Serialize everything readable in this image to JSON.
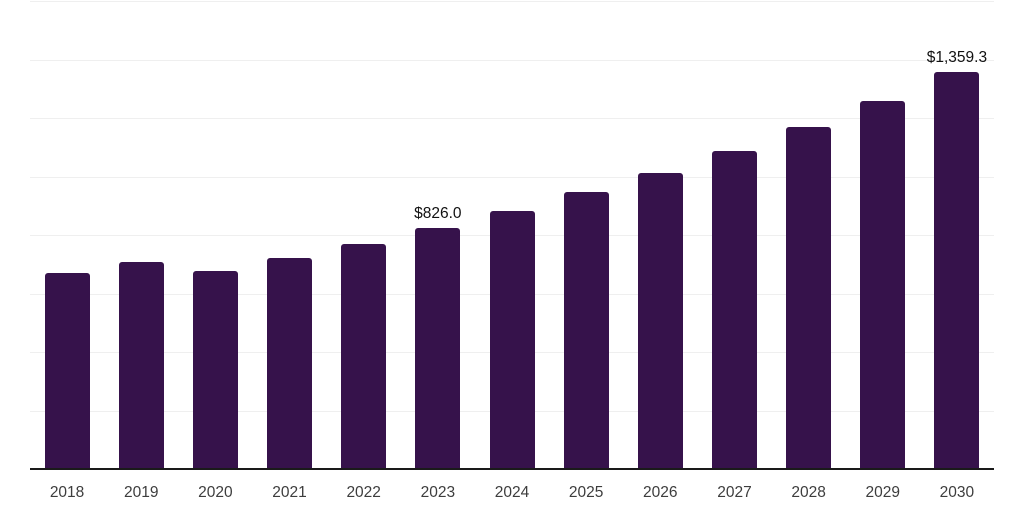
{
  "chart_data": {
    "type": "bar",
    "title": "",
    "xlabel": "",
    "ylabel": "",
    "categories": [
      "2018",
      "2019",
      "2020",
      "2021",
      "2022",
      "2023",
      "2024",
      "2025",
      "2026",
      "2027",
      "2028",
      "2029",
      "2030"
    ],
    "values": [
      674,
      711,
      680,
      725,
      773,
      826.0,
      886,
      950,
      1015,
      1091,
      1173,
      1262,
      1359.3
    ],
    "value_labels": {
      "2023": "$826.0",
      "2030": "$1,359.3"
    },
    "ylim": [
      0,
      1600
    ],
    "grid": true,
    "grid_interval": 200,
    "y_axis_tick_labels_visible": false,
    "legend": "none",
    "colors": {
      "bar": "#36124B",
      "axis_line": "#1a1a1a",
      "gridline": "#efefef",
      "value_label": "#111111",
      "tick_label": "#3d3d3d",
      "background": "#ffffff"
    }
  }
}
